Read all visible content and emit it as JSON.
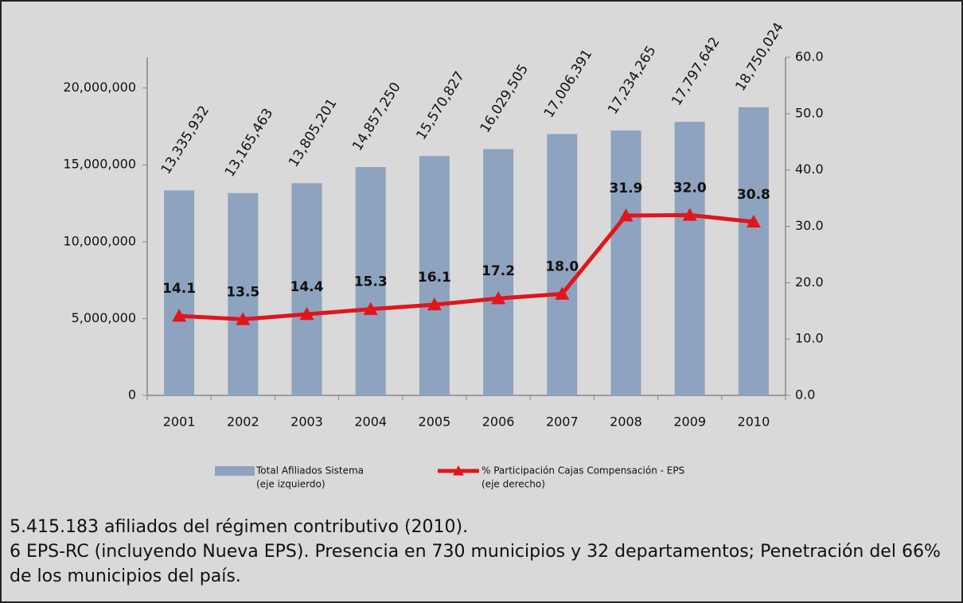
{
  "chart_data": {
    "type": "bar_line",
    "categories": [
      "2001",
      "2002",
      "2003",
      "2004",
      "2005",
      "2006",
      "2007",
      "2008",
      "2009",
      "2010"
    ],
    "series": [
      {
        "name": "Total Afiliados Sistema",
        "axis_note": "(eje izquierdo)",
        "type": "bar",
        "axis": "y",
        "color": "#8ea3bf",
        "values": [
          13335932,
          13165463,
          13805201,
          14857250,
          15570827,
          16029505,
          17006391,
          17234265,
          17797642,
          18750024
        ],
        "value_labels": [
          "13,335,932",
          "13,165,463",
          "13,805,201",
          "14,857,250",
          "15,570,827",
          "16,029,505",
          "17,006,391",
          "17,234,265",
          "17,797,642",
          "18,750,024"
        ]
      },
      {
        "name": "% Participación Cajas Compensación - EPS",
        "axis_note": "(eje derecho)",
        "type": "line",
        "axis": "y2",
        "color": "#e0161d",
        "values": [
          14.1,
          13.5,
          14.4,
          15.3,
          16.1,
          17.2,
          18.0,
          31.9,
          32.0,
          30.8
        ],
        "value_labels": [
          "14.1",
          "13.5",
          "14.4",
          "15.3",
          "16.1",
          "17.2",
          "18.0",
          "31.9",
          "32.0",
          "30.8"
        ]
      }
    ],
    "ylim": [
      0,
      22000000
    ],
    "yticks": [
      0,
      {
        "value": 5000000,
        "label": "5,000,000"
      },
      {
        "value": 10000000,
        "label": "10,000,000"
      },
      {
        "value": 15000000,
        "label": "15,000,000"
      },
      {
        "value": 20000000,
        "label": "20,000,000"
      }
    ],
    "y2lim": [
      0,
      60
    ],
    "y2ticks": [
      {
        "value": 0,
        "label": "0.0"
      },
      {
        "value": 10,
        "label": "10.0"
      },
      {
        "value": 20,
        "label": "20.0"
      },
      {
        "value": 30,
        "label": "30.0"
      },
      {
        "value": 40,
        "label": "40.0"
      },
      {
        "value": 50,
        "label": "50.0"
      },
      {
        "value": 60,
        "label": "60.0"
      }
    ],
    "notes": [
      "5.415.183 afiliados del régimen contributivo (2010).",
      "6 EPS-RC (incluyendo Nueva EPS).  Presencia en 730 municipios y 32 departamentos; Penetración del 66% de los municipios del país."
    ]
  }
}
